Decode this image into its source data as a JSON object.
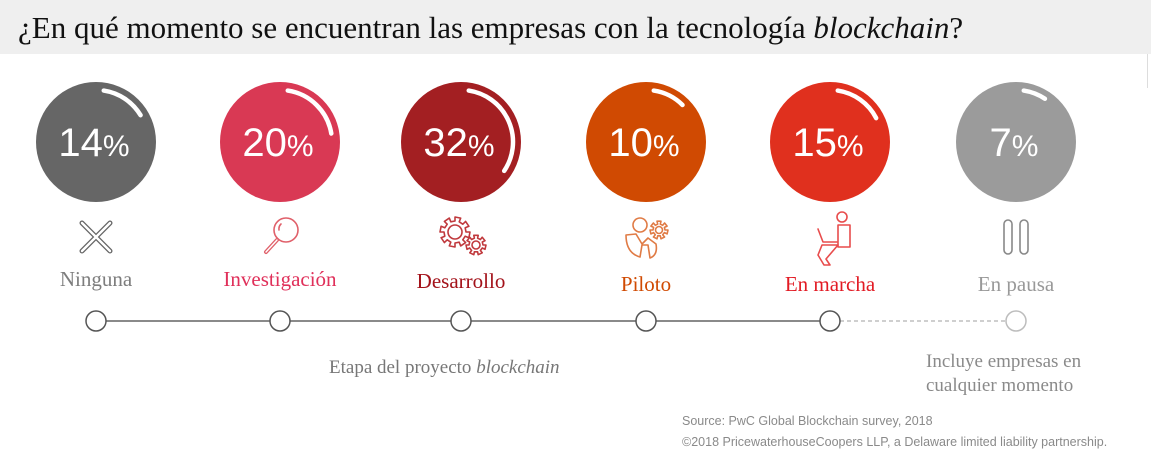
{
  "header": {
    "title_prefix": "¿En qué momento se encuentran las empresas con la tecnología ",
    "title_italic": "blockchain",
    "title_suffix": "?"
  },
  "chart_data": {
    "type": "pie",
    "title": "¿En qué momento se encuentran las empresas con la tecnología blockchain?",
    "xlabel": "Etapa del proyecto blockchain",
    "unit": "%",
    "categories": [
      "Ninguna",
      "Investigación",
      "Desarrollo",
      "Piloto",
      "En marcha",
      "En pausa"
    ],
    "values": [
      14,
      20,
      32,
      10,
      15,
      7
    ],
    "colors": [
      "#666666",
      "#d93954",
      "#a31f22",
      "#d04a02",
      "#e0301e",
      "#9b9b9b"
    ],
    "label_colors": [
      "#7d7d7d",
      "#e0305a",
      "#a3121a",
      "#d04a02",
      "#e21b24",
      "#999999"
    ],
    "icons": [
      "x-icon",
      "magnifier-icon",
      "gears-icon",
      "person-gear-icon",
      "person-laptop-icon",
      "pause-icon"
    ],
    "timeline": {
      "solid_segments_end_index": 4,
      "dashed_last_segment": true
    }
  },
  "axis": {
    "label_prefix": "Etapa del proyecto ",
    "label_italic": "blockchain"
  },
  "note": {
    "line1": "Incluye empresas en",
    "line2": "cualquier momento"
  },
  "footer": {
    "source": "Source: PwC Global Blockchain survey, 2018",
    "copyright": "©2018 PricewaterhouseCoopers LLP, a Delaware limited liability partnership."
  }
}
